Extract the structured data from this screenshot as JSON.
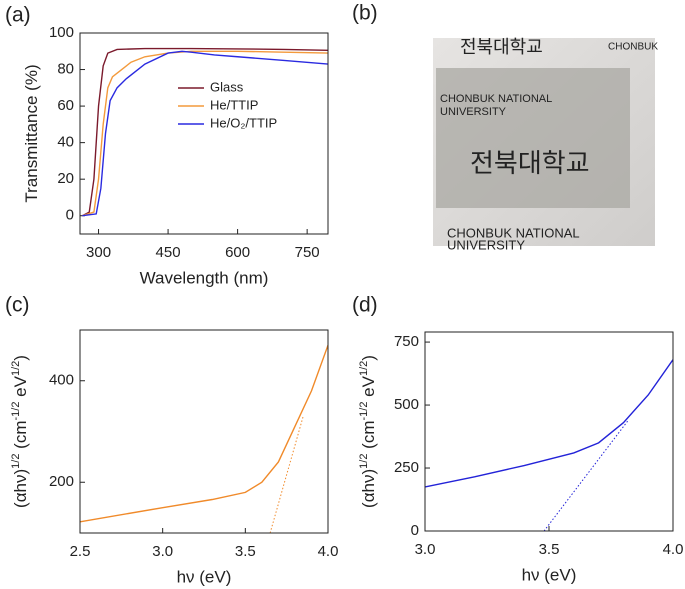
{
  "chart_data": [
    {
      "type": "line",
      "panel_label": "(a)",
      "xlabel": "Wavelength (nm)",
      "ylabel": [
        "Transmittance (%)"
      ],
      "xlim": [
        260,
        795
      ],
      "xticks": [
        300,
        450,
        600,
        750
      ],
      "ylim": [
        -10,
        100
      ],
      "yticks": [
        0,
        20,
        40,
        60,
        80,
        100
      ],
      "legend": "center right",
      "series": [
        {
          "name": "Glass",
          "color": "#7b1a2c",
          "x": [
            265,
            280,
            290,
            300,
            310,
            320,
            340,
            400,
            500,
            600,
            700,
            795
          ],
          "values": [
            0,
            2,
            20,
            60,
            82,
            89,
            91,
            91.5,
            91.5,
            91.3,
            91,
            90.5
          ]
        },
        {
          "name": "He/TTIP",
          "color": "#f39a3c",
          "x": [
            265,
            290,
            300,
            310,
            320,
            330,
            350,
            370,
            400,
            450,
            500,
            600,
            700,
            795
          ],
          "values": [
            0,
            2,
            20,
            50,
            70,
            76,
            80,
            84,
            87,
            89,
            90,
            90,
            89.5,
            89
          ]
        },
        {
          "name": "He/O₂/TTIP",
          "color": "#2a2ae0",
          "x": [
            265,
            295,
            305,
            315,
            325,
            340,
            360,
            400,
            450,
            480,
            500,
            550,
            600,
            700,
            795
          ],
          "values": [
            0,
            1,
            15,
            45,
            63,
            70,
            75,
            83,
            89,
            90,
            89.5,
            88,
            87,
            85,
            83
          ]
        }
      ]
    },
    {
      "type": "line",
      "panel_label": "(c)",
      "xlabel": "hν (eV)",
      "ylabel": [
        "(αhν)",
        "1/2",
        " (cm",
        "-1/2",
        " eV",
        "1/2",
        ")"
      ],
      "xlim": [
        2.5,
        4.0
      ],
      "xticks": [
        2.5,
        {
          "value": 3,
          "label": "3.0"
        },
        3.5,
        {
          "value": 4,
          "label": "4.0"
        }
      ],
      "ylim": [
        100,
        500
      ],
      "yticks": [
        200,
        400
      ],
      "series": [
        {
          "color": "#f08a2a",
          "x": [
            2.5,
            3.0,
            3.3,
            3.5,
            3.6,
            3.7,
            3.8,
            3.9,
            4.0
          ],
          "values": [
            122,
            150,
            166,
            180,
            200,
            240,
            310,
            380,
            470
          ]
        },
        {
          "color": "#f08a2a",
          "dash": "dotted",
          "x": [
            3.65,
            3.85
          ],
          "values": [
            100,
            330
          ]
        }
      ]
    },
    {
      "type": "line",
      "panel_label": "(d)",
      "xlabel": "hν (eV)",
      "ylabel": [
        "(αhν)",
        "1/2",
        " (cm",
        "-1/2",
        " eV",
        "1/2",
        ")"
      ],
      "xlim": [
        3.0,
        4.0
      ],
      "xticks": [
        {
          "value": 3,
          "label": "3.0"
        },
        3.5,
        {
          "value": 4,
          "label": "4.0"
        }
      ],
      "ylim": [
        0,
        790
      ],
      "yticks": [
        0,
        250,
        500,
        750
      ],
      "series": [
        {
          "color": "#2323d8",
          "x": [
            3.0,
            3.2,
            3.4,
            3.6,
            3.7,
            3.8,
            3.9,
            4.0
          ],
          "values": [
            175,
            215,
            260,
            310,
            350,
            430,
            540,
            680
          ]
        },
        {
          "color": "#2323d8",
          "dash": "dotted",
          "x": [
            3.48,
            3.82
          ],
          "values": [
            0,
            440
          ]
        }
      ]
    }
  ],
  "photo": {
    "panel_label": "(b)",
    "texts": [
      "전북대학교",
      "CHONBUK",
      "CHONBUK NATIONAL",
      "UNIVERSITY",
      "전북대학교",
      "CHONBUK NATIONAL",
      "UNIVERSITY"
    ]
  }
}
